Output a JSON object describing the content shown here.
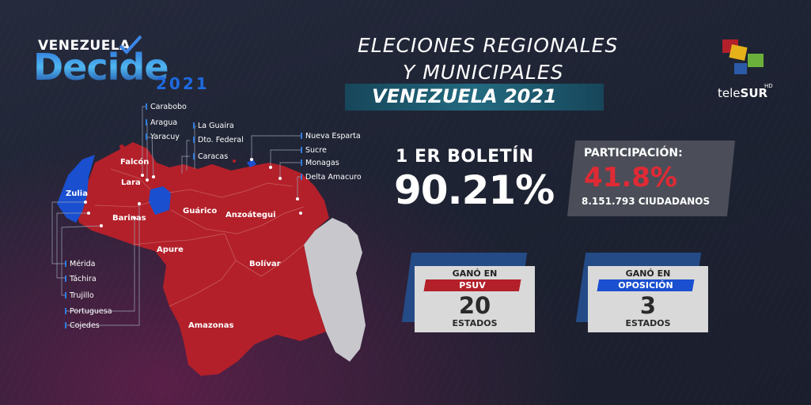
{
  "logo": {
    "top": "VENEZUELA",
    "main": "Decide",
    "year": "2021"
  },
  "header": {
    "line1": "ELECIONES REGIONALES",
    "line2": "Y MUNICIPALES",
    "line3": "VENEZUELA 2021"
  },
  "brand": {
    "name_light": "tele",
    "name_bold": "SUR",
    "hd": "HD"
  },
  "bulletin": {
    "label": "1 ER BOLETÍN",
    "value": "90.21%"
  },
  "participation": {
    "label": "PARTICIPACIÓN:",
    "value": "41.8%",
    "citizens": "8.151.793 CIUDADANOS"
  },
  "results": [
    {
      "header": "GANÓ EN",
      "party": "PSUV",
      "count": "20",
      "unit": "ESTADOS",
      "color": "#b3202a"
    },
    {
      "header": "GANÓ EN",
      "party": "OPOSICIÓN",
      "count": "3",
      "unit": "ESTADOS",
      "color": "#1a4fd0"
    }
  ],
  "map": {
    "states_map": [
      "Falcón",
      "Lara",
      "Zulia",
      "Barinas",
      "Guárico",
      "Anzoátegui",
      "Apure",
      "Bolívar",
      "Amazonas"
    ],
    "states_callout": [
      "Carabobo",
      "Aragua",
      "Yaracuy",
      "La Guaira",
      "Dto. Federal",
      "Caracas",
      "Nueva Esparta",
      "Sucre",
      "Monagas",
      "Delta Amacuro",
      "Mérida",
      "Táchira",
      "Trujillo",
      "Portuguesa",
      "Cojedes"
    ],
    "colors": {
      "psuv": "#b3202a",
      "opposition": "#1a4fd0",
      "disputed": "#c8c8cc"
    }
  }
}
